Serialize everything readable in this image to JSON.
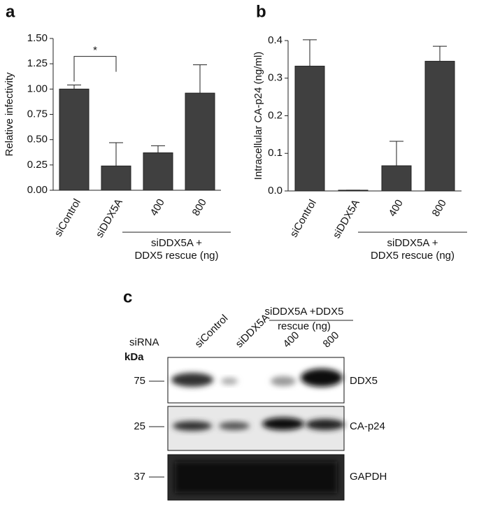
{
  "chart_data": [
    {
      "type": "bar",
      "panel": "a",
      "ylabel": "Relative infectivity",
      "categories": [
        "siControl",
        "siDDX5A",
        "400",
        "800"
      ],
      "values": [
        1.0,
        0.24,
        0.37,
        0.96
      ],
      "errors": [
        0.04,
        0.23,
        0.07,
        0.28
      ],
      "color": "#404040",
      "ylim": [
        0,
        1.5
      ],
      "yticks": [
        {
          "value": 0,
          "label": "0.00"
        },
        {
          "value": 0.25,
          "label": "0.25"
        },
        {
          "value": 0.5,
          "label": "0.50"
        },
        {
          "value": 0.75,
          "label": "0.75"
        },
        {
          "value": 1,
          "label": "1.00"
        },
        {
          "value": 1.25,
          "label": "1.25"
        },
        {
          "value": 1.5,
          "label": "1.50"
        }
      ],
      "group_label": [
        "siDDX5A +",
        "DDX5 rescue (ng)"
      ],
      "significance": "*"
    },
    {
      "type": "bar",
      "panel": "b",
      "ylabel": "Intracellular CA-p24 (ng/ml)",
      "categories": [
        "siControl",
        "siDDX5A",
        "400",
        "800"
      ],
      "values": [
        0.332,
        0.002,
        0.067,
        0.345
      ],
      "errors": [
        0.07,
        0,
        0.065,
        0.04
      ],
      "color": "#404040",
      "ylim": [
        0,
        0.4
      ],
      "yticks": [
        {
          "value": 0,
          "label": "0.0"
        },
        0.1,
        0.2,
        0.3,
        0.4
      ],
      "group_label": [
        "siDDX5A +",
        "DDX5 rescue (ng)"
      ]
    }
  ],
  "blot": {
    "panel": "c",
    "title": [
      "siDDX5A +DDX5",
      "rescue (ng)"
    ],
    "lanes": [
      "siControl",
      "siDDX5A",
      "400",
      "800"
    ],
    "row_header": "siRNA",
    "kda_label": "kDa",
    "markers": [
      "75",
      "25",
      "37"
    ],
    "proteins": [
      "DDX5",
      "CA-p24",
      "GAPDH"
    ]
  }
}
